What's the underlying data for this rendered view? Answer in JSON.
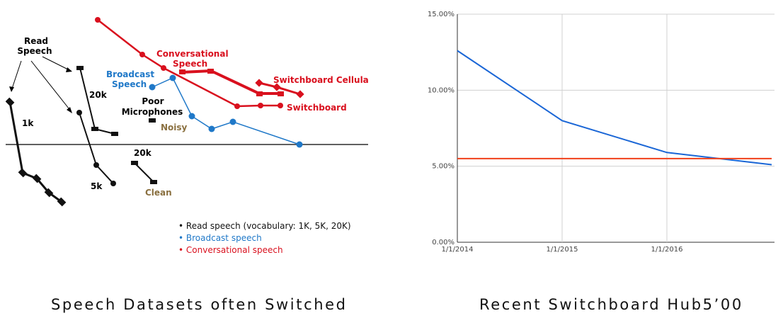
{
  "captions": {
    "left": "Speech Datasets often Switched",
    "right": "Recent Switchboard Hub5’00"
  },
  "colors": {
    "read": "#111111",
    "broadcast": "#1f78c8",
    "conversational": "#d9101e",
    "clean_noisy": "#8a7040",
    "line_blue": "#1a66d6",
    "line_red": "#f0401a"
  },
  "chart_data": [
    {
      "type": "line",
      "chart": "left",
      "labels": {
        "read_speech": [
          "Read",
          "Speech"
        ],
        "k1": "1k",
        "k5": "5k",
        "k20a": "20k",
        "k20b": "20k",
        "broadcast": [
          "Broadcast",
          "Speech"
        ],
        "poor_mic": [
          "Poor",
          "Microphones"
        ],
        "noisy": "Noisy",
        "clean": "Clean",
        "conversational": [
          "Conversational",
          "Speech"
        ],
        "swb_cell": "Switchboard Cellular",
        "swb": "Switchboard"
      },
      "legend": [
        "• Read speech (vocabulary: 1K, 5K, 20K)",
        "• Broadcast speech",
        "• Conversational speech"
      ]
    },
    {
      "type": "line",
      "chart": "right",
      "x": [
        "1/1/2014",
        "1/1/2015",
        "1/1/2016"
      ],
      "yticks": [
        "0.00%",
        "5.00%",
        "10.00%",
        "15.00%"
      ],
      "ylim": [
        0,
        15
      ],
      "xlim": [
        2014.0,
        2016.0
      ],
      "series": [
        {
          "points": [
            [
              2014.0,
              12.6
            ],
            [
              2015.0,
              8.0
            ],
            [
              2016.0,
              5.9
            ],
            [
              2017.0,
              5.1
            ]
          ]
        },
        {
          "points": [
            [
              2014.0,
              5.5
            ],
            [
              2017.0,
              5.5
            ]
          ]
        }
      ]
    }
  ]
}
